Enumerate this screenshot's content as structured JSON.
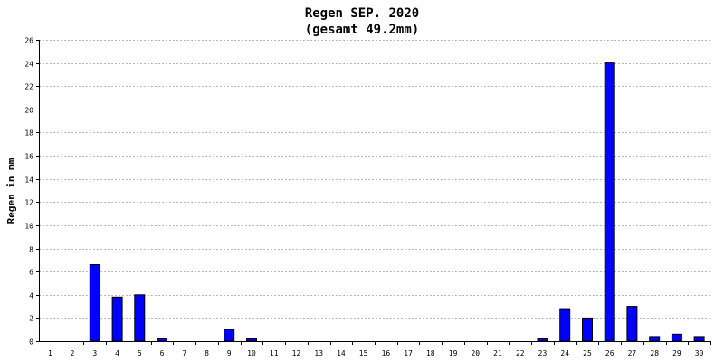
{
  "chart_data": {
    "type": "bar",
    "title": "Regen SEP. 2020",
    "subtitle": "(gesamt 49.2mm)",
    "xlabel": "",
    "ylabel": "Regen in mm",
    "ylim": [
      0,
      26
    ],
    "ytick_step": 2,
    "grid": true,
    "bar_color": "#0000ff",
    "categories": [
      "1",
      "2",
      "3",
      "4",
      "5",
      "6",
      "7",
      "8",
      "9",
      "10",
      "11",
      "12",
      "13",
      "14",
      "15",
      "16",
      "17",
      "18",
      "19",
      "20",
      "21",
      "22",
      "23",
      "24",
      "25",
      "26",
      "27",
      "28",
      "29",
      "30"
    ],
    "values": [
      0,
      0,
      6.6,
      3.8,
      4.0,
      0.2,
      0,
      0,
      1.0,
      0.2,
      0,
      0,
      0,
      0,
      0,
      0,
      0,
      0,
      0,
      0,
      0,
      0,
      0.2,
      2.8,
      2.0,
      24.0,
      3.0,
      0.4,
      0.6,
      0.4
    ]
  }
}
